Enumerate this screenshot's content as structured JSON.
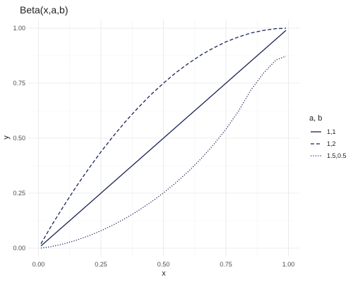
{
  "chart_data": {
    "type": "line",
    "title": "Beta(x,a,b)",
    "xlabel": "x",
    "ylabel": "y",
    "xlim": [
      0,
      1
    ],
    "ylim": [
      0,
      1
    ],
    "x_ticks": [
      "0.00",
      "0.25",
      "0.50",
      "0.75",
      "1.00"
    ],
    "y_ticks": [
      "0.00",
      "0.25",
      "0.50",
      "0.75",
      "1.00"
    ],
    "grid": true,
    "legend": {
      "title": "a, b",
      "position": "right"
    },
    "line_color": "#1a2456",
    "x": [
      0.01,
      0.05,
      0.1,
      0.15,
      0.2,
      0.25,
      0.3,
      0.35,
      0.4,
      0.45,
      0.5,
      0.55,
      0.6,
      0.65,
      0.7,
      0.75,
      0.8,
      0.85,
      0.9,
      0.95,
      0.99
    ],
    "series": [
      {
        "name": "1,1",
        "dash": "solid",
        "values": [
          0.01,
          0.05,
          0.1,
          0.15,
          0.2,
          0.25,
          0.3,
          0.35,
          0.4,
          0.45,
          0.5,
          0.55,
          0.6,
          0.65,
          0.7,
          0.75,
          0.8,
          0.85,
          0.9,
          0.95,
          0.99
        ]
      },
      {
        "name": "1,2",
        "dash": "dashed",
        "values": [
          0.02,
          0.098,
          0.19,
          0.278,
          0.36,
          0.438,
          0.51,
          0.578,
          0.64,
          0.698,
          0.75,
          0.798,
          0.84,
          0.878,
          0.91,
          0.938,
          0.96,
          0.978,
          0.99,
          0.998,
          1.0
        ]
      },
      {
        "name": "1.5,0.5",
        "dash": "dotted",
        "values": [
          0.0006,
          0.0068,
          0.0192,
          0.0356,
          0.0557,
          0.0792,
          0.1062,
          0.1367,
          0.1709,
          0.2091,
          0.2512,
          0.2977,
          0.3491,
          0.4062,
          0.4695,
          0.5406,
          0.6226,
          0.7191,
          0.7952,
          0.8557,
          0.8726
        ]
      }
    ]
  }
}
